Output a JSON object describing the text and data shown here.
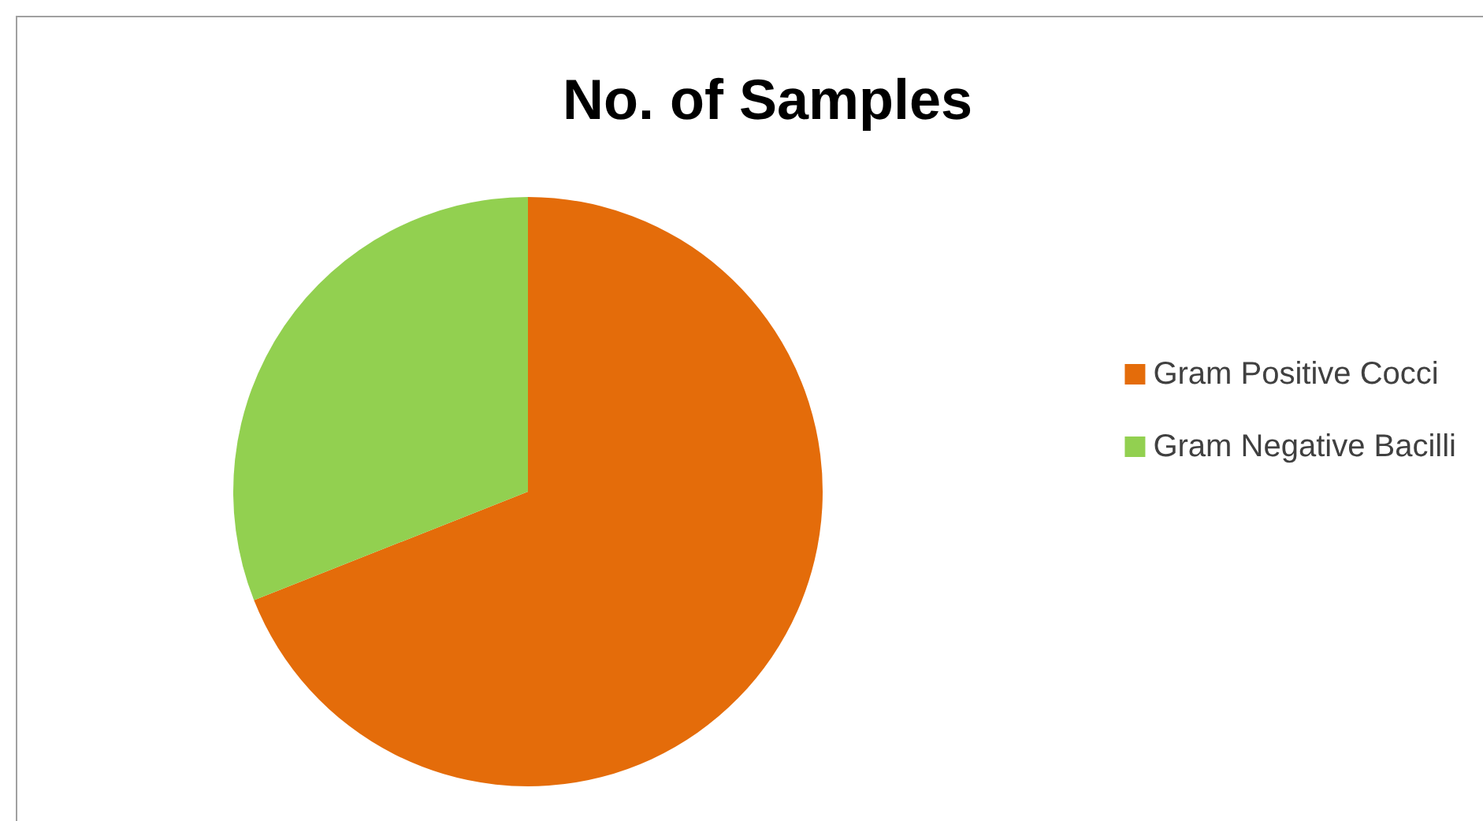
{
  "chart_data": {
    "type": "pie",
    "title": "No. of Samples",
    "categories": [
      "Gram Positive Cocci",
      "Gram Negative Bacilli"
    ],
    "values": [
      69,
      31
    ],
    "colors": [
      "#e46c0a",
      "#92d050"
    ],
    "legend": "right"
  }
}
